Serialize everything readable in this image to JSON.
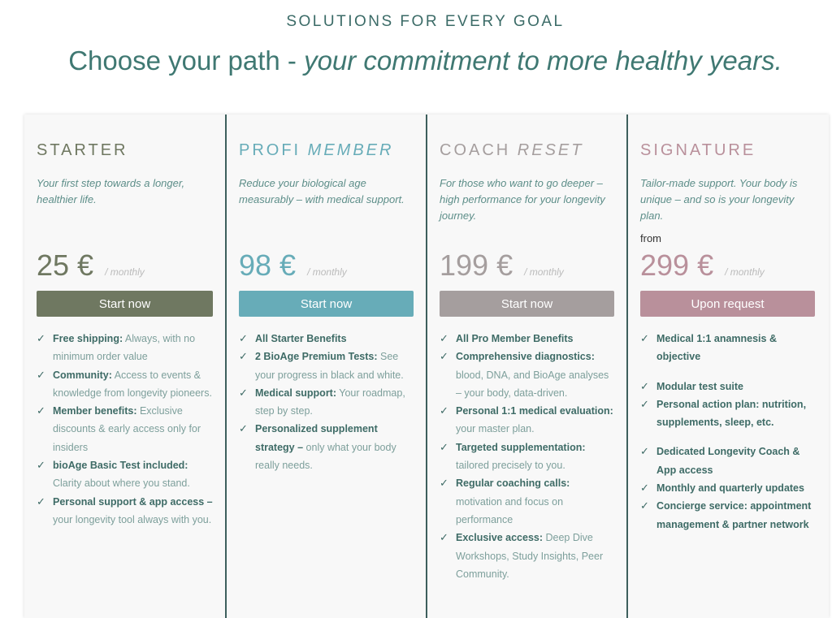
{
  "header": {
    "eyebrow": "SOLUTIONS FOR EVERY GOAL",
    "headline_plain": "Choose your path - ",
    "headline_italic": "your commitment to more healthy years."
  },
  "colors": {
    "starter": "#6f7861",
    "profi": "#67acb8",
    "coach": "#a59e9e",
    "signature": "#b9909b",
    "text_teal": "#3e6b66"
  },
  "plans": [
    {
      "title": "STARTER",
      "title_italic": "",
      "desc": "Your first step towards a longer, healthier life.",
      "from": "",
      "price": "25 €",
      "period": "/ monthly",
      "button": "Start now",
      "features": [
        {
          "bold": "Free shipping:",
          "text": " Always, with no minimum order value"
        },
        {
          "bold": "Community:",
          "text": " Access to events & knowledge from longevity pioneers."
        },
        {
          "bold": "Member benefits:",
          "text": " Exclusive discounts & early access only for insiders"
        },
        {
          "bold": "bioAge Basic Test included:",
          "text": " Clarity about where you stand."
        },
        {
          "bold": "Personal support & app access –",
          "text": " your longevity tool always with you."
        }
      ]
    },
    {
      "title": "PROFI ",
      "title_italic": "MEMBER",
      "desc": "Reduce your biological age measurably – with medical support.",
      "from": "",
      "price": "98 €",
      "period": "/ monthly",
      "button": "Start now",
      "features": [
        {
          "bold": "All Starter Benefits",
          "text": ""
        },
        {
          "bold": "2 BioAge Premium Tests:",
          "text": " See your progress in black and white."
        },
        {
          "bold": "Medical support:",
          "text": " Your roadmap, step by step."
        },
        {
          "bold": "Personalized supplement strategy –",
          "text": " only what your body really needs."
        }
      ]
    },
    {
      "title": "COACH ",
      "title_italic": "RESET",
      "desc": "For those who want to go deeper – high performance for your longevity journey.",
      "from": "",
      "price": "199 €",
      "period": "/ monthly",
      "button": "Start now",
      "features": [
        {
          "bold": "All Pro Member Benefits",
          "text": ""
        },
        {
          "bold": "Comprehensive diagnostics:",
          "text": " blood, DNA, and BioAge analyses – your body, data-driven."
        },
        {
          "bold": "Personal 1:1 medical evaluation:",
          "text": " your master plan."
        },
        {
          "bold": "Targeted supplementation:",
          "text": " tailored precisely to you."
        },
        {
          "bold": "Regular coaching calls:",
          "text": " motivation and focus on performance"
        },
        {
          "bold": "Exclusive access:",
          "text": " Deep Dive Workshops, Study Insights, Peer Community."
        }
      ]
    },
    {
      "title": "SIGNATURE",
      "title_italic": "",
      "desc": "Tailor-made support. Your body is unique – and so is your longevity plan.",
      "from": "from",
      "price": "299 €",
      "period": "/ monthly",
      "button": "Upon request",
      "features": [
        {
          "bold": "Medical 1:1 anamnesis & objective",
          "text": ""
        },
        {
          "bold": "Modular test suite",
          "text": ""
        },
        {
          "bold": "Personal action plan: nutrition, supplements, sleep, etc.",
          "text": ""
        },
        {
          "bold": "Dedicated Longevity Coach & App access",
          "text": ""
        },
        {
          "bold": "Monthly and quarterly updates",
          "text": ""
        },
        {
          "bold": "Concierge service: appointment management & partner network",
          "text": ""
        }
      ]
    }
  ]
}
